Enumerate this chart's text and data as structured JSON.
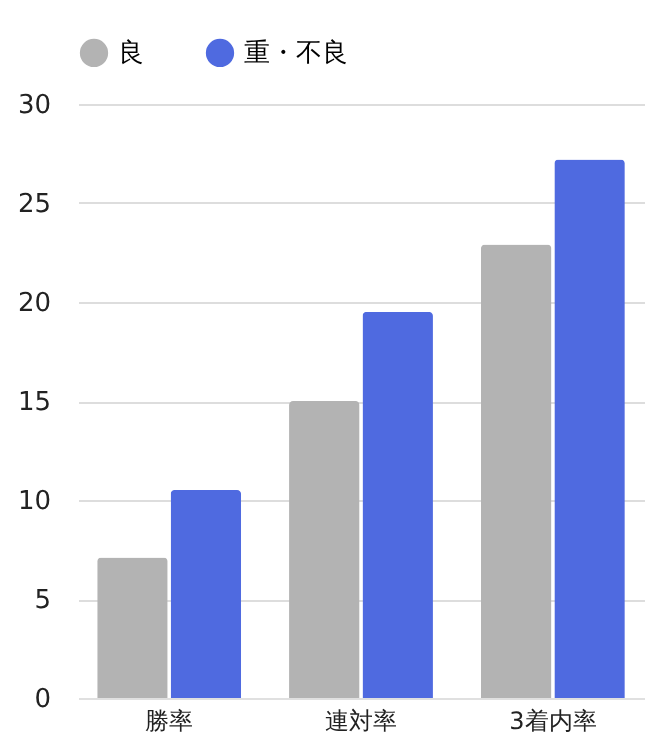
{
  "chart_data": {
    "type": "bar",
    "categories": [
      "勝率",
      "連対率",
      "3着内率"
    ],
    "series": [
      {
        "name": "良",
        "color": "#b3b3b3",
        "values": [
          7.1,
          15.0,
          22.9
        ]
      },
      {
        "name": "重・不良",
        "color": "#4f6ae0",
        "values": [
          10.5,
          19.5,
          27.2
        ]
      }
    ],
    "ylim": [
      0,
      30
    ],
    "yticks": [
      0,
      5,
      10,
      15,
      20,
      25,
      30
    ],
    "grid": "y",
    "legend": "top"
  }
}
